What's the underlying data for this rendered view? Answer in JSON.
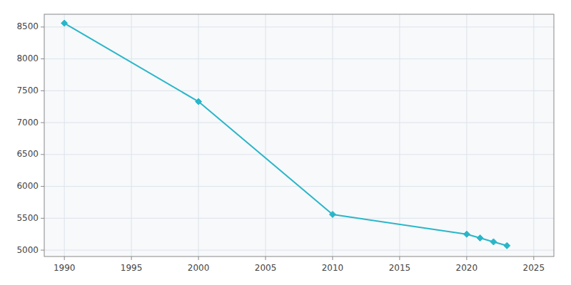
{
  "chart_data": {
    "type": "line",
    "x": [
      1990,
      2000,
      2010,
      2020,
      2021,
      2022,
      2023
    ],
    "values": [
      8560,
      7330,
      5560,
      5250,
      5190,
      5130,
      5070
    ],
    "color": "#29b6c8",
    "marker": "diamond",
    "xlim": [
      1988.5,
      2026.5
    ],
    "ylim": [
      4900,
      8700
    ],
    "xticks": [
      1990,
      1995,
      2000,
      2005,
      2010,
      2015,
      2020,
      2025
    ],
    "yticks": [
      5000,
      5500,
      6000,
      6500,
      7000,
      7500,
      8000,
      8500
    ],
    "grid": true
  }
}
